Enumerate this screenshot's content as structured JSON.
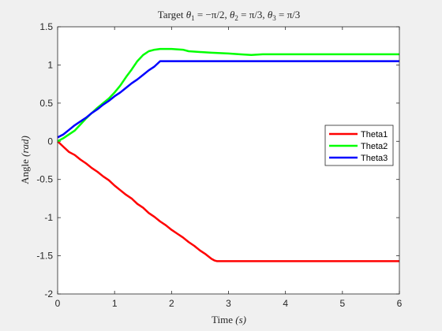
{
  "chart_data": {
    "type": "line",
    "title": "Target θ1 = −π/2, θ2 = π/3, θ3 = π/3",
    "title_parts": {
      "prefix": "Target ",
      "theta1_label": "θ",
      "theta1_sub": "1",
      "theta1_value": " = −π/2, ",
      "theta2_label": "θ",
      "theta2_sub": "2",
      "theta2_value": " = π/3, ",
      "theta3_label": "θ",
      "theta3_sub": "3",
      "theta3_value": " = π/3"
    },
    "xlabel_prefix": "Time ",
    "xlabel_unit": "(s)",
    "ylabel_prefix": "Angle ",
    "ylabel_unit": "(rad)",
    "xlim": [
      0,
      6
    ],
    "ylim": [
      -2,
      1.5
    ],
    "xticks": [
      0,
      1,
      2,
      3,
      4,
      5,
      6
    ],
    "yticks": [
      -2,
      -1.5,
      -1,
      -0.5,
      0,
      0.5,
      1,
      1.5
    ],
    "ytick_labels": [
      "-2",
      "-1.5",
      "-1",
      "-0.5",
      "0",
      "0.5",
      "1",
      "1.5"
    ],
    "grid": false,
    "legend_position": "right-middle",
    "series": [
      {
        "name": "Theta1",
        "color": "#ff0000",
        "x": [
          0,
          0.1,
          0.2,
          0.3,
          0.4,
          0.5,
          0.6,
          0.7,
          0.8,
          0.9,
          1.0,
          1.1,
          1.2,
          1.3,
          1.4,
          1.5,
          1.6,
          1.7,
          1.8,
          1.9,
          2.0,
          2.1,
          2.2,
          2.3,
          2.4,
          2.5,
          2.6,
          2.7,
          2.75,
          2.8,
          3.0,
          4.0,
          5.0,
          6.0
        ],
        "values": [
          0,
          -0.07,
          -0.14,
          -0.18,
          -0.24,
          -0.29,
          -0.35,
          -0.4,
          -0.46,
          -0.51,
          -0.58,
          -0.64,
          -0.7,
          -0.75,
          -0.82,
          -0.87,
          -0.94,
          -0.99,
          -1.05,
          -1.1,
          -1.16,
          -1.21,
          -1.26,
          -1.32,
          -1.37,
          -1.43,
          -1.48,
          -1.54,
          -1.56,
          -1.57,
          -1.57,
          -1.57,
          -1.57,
          -1.57
        ]
      },
      {
        "name": "Theta2",
        "color": "#00ff00",
        "x": [
          0,
          0.1,
          0.2,
          0.3,
          0.4,
          0.5,
          0.6,
          0.7,
          0.8,
          0.9,
          1.0,
          1.1,
          1.2,
          1.3,
          1.4,
          1.5,
          1.6,
          1.7,
          1.8,
          2.0,
          2.2,
          2.3,
          2.5,
          2.7,
          3.0,
          3.2,
          3.4,
          3.6,
          4.0,
          5.0,
          6.0
        ],
        "values": [
          0,
          0.04,
          0.09,
          0.14,
          0.22,
          0.3,
          0.37,
          0.44,
          0.5,
          0.56,
          0.64,
          0.73,
          0.84,
          0.94,
          1.05,
          1.13,
          1.18,
          1.2,
          1.21,
          1.21,
          1.2,
          1.18,
          1.17,
          1.16,
          1.15,
          1.14,
          1.13,
          1.14,
          1.14,
          1.14,
          1.14
        ]
      },
      {
        "name": "Theta3",
        "color": "#0000ff",
        "x": [
          0,
          0.1,
          0.2,
          0.3,
          0.4,
          0.5,
          0.6,
          0.7,
          0.8,
          0.9,
          1.0,
          1.1,
          1.2,
          1.3,
          1.4,
          1.5,
          1.6,
          1.7,
          1.8,
          2.0,
          3.0,
          4.0,
          5.0,
          6.0
        ],
        "values": [
          0.05,
          0.09,
          0.15,
          0.21,
          0.26,
          0.31,
          0.37,
          0.42,
          0.48,
          0.53,
          0.59,
          0.64,
          0.7,
          0.76,
          0.81,
          0.87,
          0.93,
          0.98,
          1.05,
          1.05,
          1.05,
          1.05,
          1.05,
          1.05
        ]
      }
    ]
  }
}
